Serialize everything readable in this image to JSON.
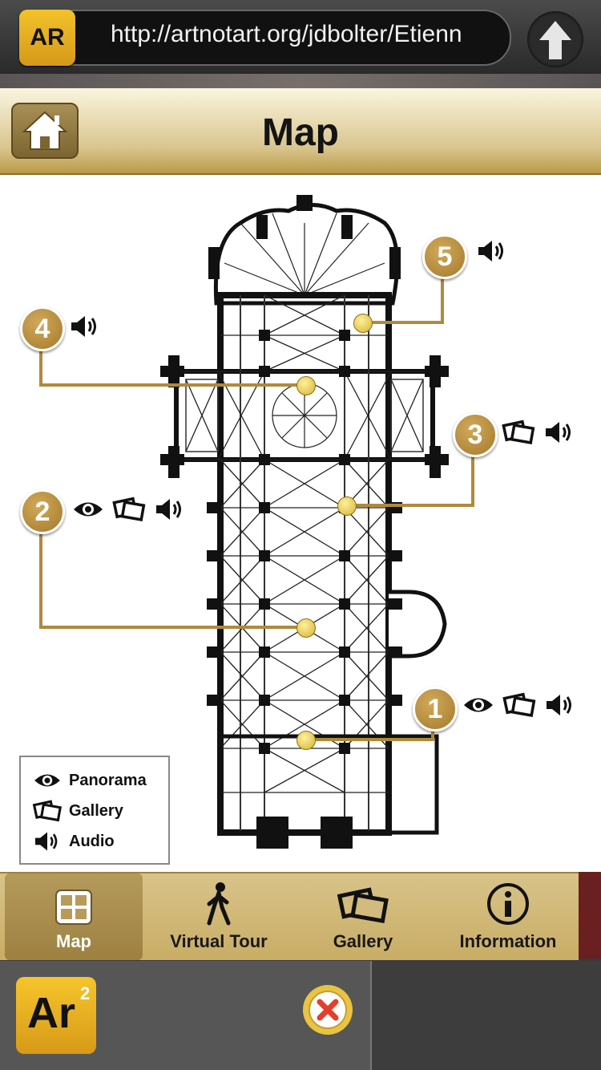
{
  "browser": {
    "logo_text": "AR",
    "url": "http://artnotart.org/jdbolter/Etienn",
    "up_icon": "up-arrow-icon"
  },
  "header": {
    "title": "Map",
    "home_icon": "home-icon"
  },
  "legend": {
    "panorama_label": "Panorama",
    "gallery_label": "Gallery",
    "audio_label": "Audio"
  },
  "markers": [
    {
      "number": "1",
      "icons": [
        "eye-icon",
        "gallery-icon",
        "audio-icon"
      ]
    },
    {
      "number": "2",
      "icons": [
        "eye-icon",
        "gallery-icon",
        "audio-icon"
      ]
    },
    {
      "number": "3",
      "icons": [
        "gallery-icon",
        "audio-icon"
      ]
    },
    {
      "number": "4",
      "icons": [
        "audio-icon"
      ]
    },
    {
      "number": "5",
      "icons": [
        "audio-icon"
      ]
    }
  ],
  "tabs": {
    "map_label": "Map",
    "tour_label": "Virtual Tour",
    "gallery_label": "Gallery",
    "info_label": "Information",
    "active": "Map"
  },
  "bottom": {
    "app_logo_text": "Ar",
    "app_logo_sup": "2",
    "close_icon": "close-icon"
  },
  "colors": {
    "gold": "#b08a3c",
    "marker": "#a4792b",
    "hotspot": "#e6c546",
    "tab_bar": "#d2bb7c"
  }
}
